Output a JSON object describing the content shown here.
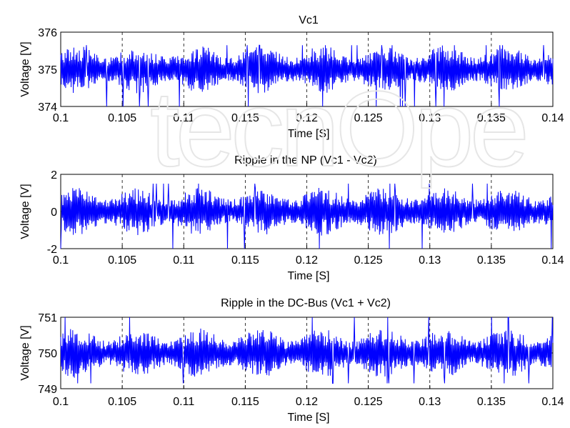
{
  "chart_data": [
    {
      "type": "line",
      "title": "Vc1",
      "xlabel": "Time [S]",
      "ylabel": "Voltage [V]",
      "xlim": [
        0.1,
        0.14
      ],
      "ylim": [
        374,
        376
      ],
      "xticks": [
        "0.1",
        "0.105",
        "0.11",
        "0.115",
        "0.12",
        "0.125",
        "0.13",
        "0.135",
        "0.14"
      ],
      "yticks": [
        "374",
        "375",
        "376"
      ],
      "grid": "dashed-vertical",
      "series": [
        {
          "color": "#0000ff",
          "x_start": 0.1,
          "x_end": 0.14,
          "center": 375.0,
          "typical_range": [
            374.3,
            375.6
          ],
          "min": 374.0,
          "max": 375.65
        }
      ]
    },
    {
      "type": "line",
      "title": "Ripple in the NP (Vc1 - Vc2)",
      "xlabel": "Time [S]",
      "ylabel": "Voltage [V]",
      "xlim": [
        0.1,
        0.14
      ],
      "ylim": [
        -2,
        2
      ],
      "xticks": [
        "0.1",
        "0.105",
        "0.11",
        "0.115",
        "0.12",
        "0.125",
        "0.13",
        "0.135",
        "0.14"
      ],
      "yticks": [
        "-2",
        "0",
        "2"
      ],
      "grid": "dashed-vertical",
      "series": [
        {
          "color": "#0000ff",
          "x_start": 0.1,
          "x_end": 0.14,
          "center": 0.0,
          "typical_range": [
            -1.3,
            1.3
          ],
          "min": -2.0,
          "max": 1.5
        }
      ]
    },
    {
      "type": "line",
      "title": "Ripple in the DC-Bus (Vc1 + Vc2)",
      "xlabel": "Time [S]",
      "ylabel": "Voltage [V]",
      "xlim": [
        0.1,
        0.14
      ],
      "ylim": [
        749,
        751
      ],
      "xticks": [
        "0.1",
        "0.105",
        "0.11",
        "0.115",
        "0.12",
        "0.125",
        "0.13",
        "0.135",
        "0.14"
      ],
      "yticks": [
        "749",
        "750",
        "751"
      ],
      "grid": "dashed-vertical",
      "series": [
        {
          "color": "#0000ff",
          "x_start": 0.1,
          "x_end": 0.14,
          "center": 750.0,
          "typical_range": [
            749.4,
            750.8
          ],
          "min": 749.15,
          "max": 751.0
        }
      ]
    }
  ]
}
